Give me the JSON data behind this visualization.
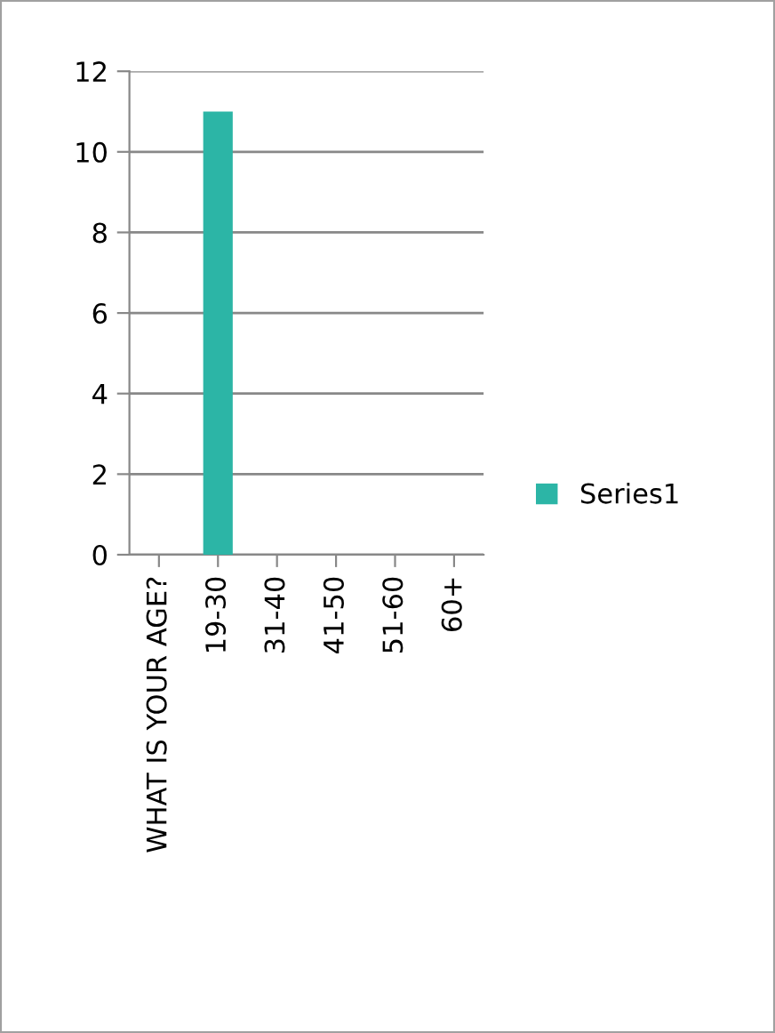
{
  "chart_data": {
    "type": "bar",
    "categories": [
      "WHAT IS YOUR AGE?",
      "19-30",
      "31-40",
      "41-50",
      "51-60",
      "60+"
    ],
    "series": [
      {
        "name": "Series1",
        "color": "#2cb5a6",
        "values": [
          null,
          11,
          0,
          0,
          0,
          0
        ]
      }
    ],
    "ylim": [
      0,
      12
    ],
    "yticks": [
      0,
      2,
      4,
      6,
      8,
      10,
      12
    ],
    "grid": "y",
    "legend": "right"
  }
}
